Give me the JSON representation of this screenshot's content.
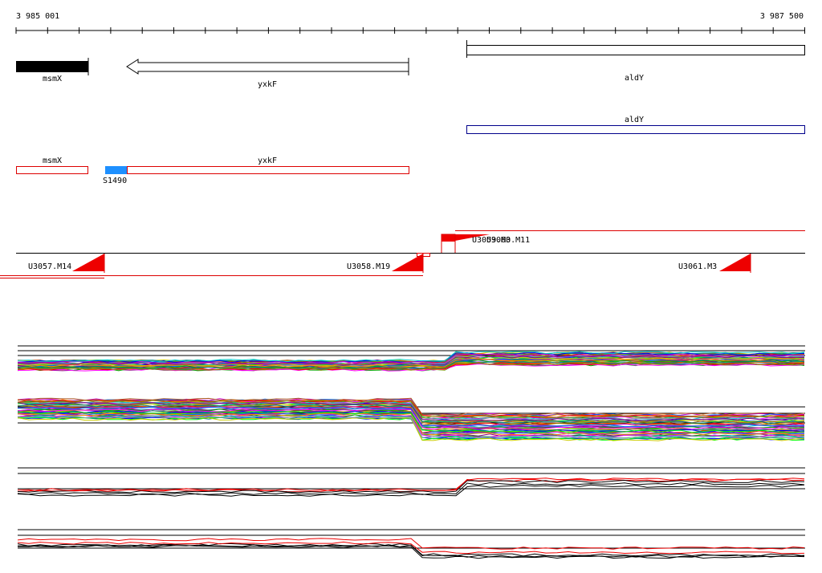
{
  "ruler": {
    "start": "3 985 001",
    "end": "3 987 500"
  },
  "gene_track": [
    {
      "label": "msmX"
    },
    {
      "label": "yxkF"
    },
    {
      "label": "aldY"
    }
  ],
  "second_track": [
    {
      "label": "aldY"
    }
  ],
  "annotation_track": [
    {
      "label": "msmX"
    },
    {
      "label": "yxkF"
    },
    {
      "label": "S1490"
    }
  ],
  "transcription_units": [
    {
      "label": "U3057.M14"
    },
    {
      "label": "U3058.M19"
    },
    {
      "label": "U3059.M3"
    },
    {
      "label": "U3060.M11"
    },
    {
      "label": "U3061.M3"
    }
  ]
}
